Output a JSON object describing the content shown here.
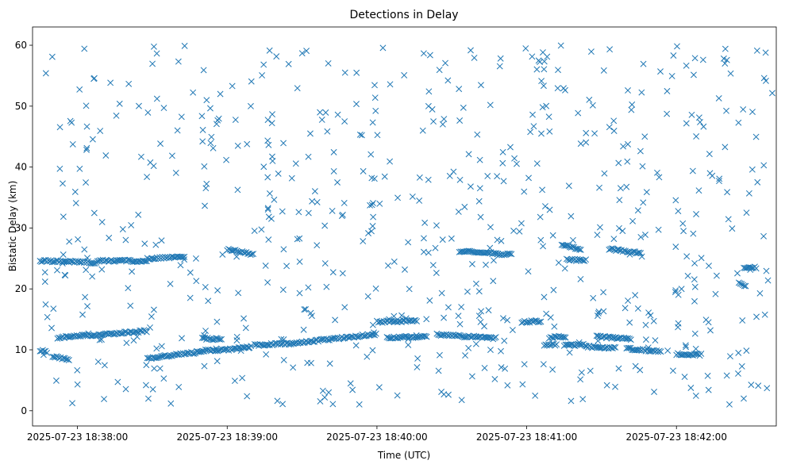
{
  "chart_data": {
    "type": "scatter",
    "title": "Detections in Delay",
    "xlabel": "Time (UTC)",
    "ylabel": "Bistatic Delay (km)",
    "marker": "x",
    "color": "#1f77b4",
    "grid": false,
    "xlim": [
      "2025-07-23 18:37:42",
      "2025-07-23 18:42:40"
    ],
    "ylim": [
      -2.5,
      63
    ],
    "x_ticks": [
      "2025-07-23 18:38:00",
      "2025-07-23 18:39:00",
      "2025-07-23 18:40:00",
      "2025-07-23 18:41:00",
      "2025-07-23 18:42:00"
    ],
    "y_ticks": [
      0,
      10,
      20,
      30,
      40,
      50,
      60
    ],
    "tracks": [
      {
        "t0": "2025-07-23 18:37:45",
        "t1": "2025-07-23 18:38:08",
        "y0": 24.6,
        "y1": 24.3
      },
      {
        "t0": "2025-07-23 18:38:08",
        "t1": "2025-07-23 18:38:28",
        "y0": 24.6,
        "y1": 24.6
      },
      {
        "t0": "2025-07-23 18:38:28",
        "t1": "2025-07-23 18:38:43",
        "y0": 25.0,
        "y1": 25.2
      },
      {
        "t0": "2025-07-23 18:37:45",
        "t1": "2025-07-23 18:37:48",
        "y0": 9.9,
        "y1": 9.6
      },
      {
        "t0": "2025-07-23 18:37:50",
        "t1": "2025-07-23 18:37:57",
        "y0": 9.0,
        "y1": 8.3
      },
      {
        "t0": "2025-07-23 18:37:52",
        "t1": "2025-07-23 18:38:28",
        "y0": 12.0,
        "y1": 13.1
      },
      {
        "t0": "2025-07-23 18:38:28",
        "t1": "2025-07-23 18:38:48",
        "y0": 8.6,
        "y1": 9.6
      },
      {
        "t0": "2025-07-23 18:38:48",
        "t1": "2025-07-23 18:39:04",
        "y0": 9.8,
        "y1": 10.1
      },
      {
        "t0": "2025-07-23 18:38:50",
        "t1": "2025-07-23 18:38:58",
        "y0": 11.8,
        "y1": 11.8
      },
      {
        "t0": "2025-07-23 18:39:04",
        "t1": "2025-07-23 18:39:10",
        "y0": 10.3,
        "y1": 10.5
      },
      {
        "t0": "2025-07-23 18:39:00",
        "t1": "2025-07-23 18:39:11",
        "y0": 26.5,
        "y1": 25.6
      },
      {
        "t0": "2025-07-23 18:39:11",
        "t1": "2025-07-23 18:39:25",
        "y0": 10.8,
        "y1": 11.0
      },
      {
        "t0": "2025-07-23 18:39:25",
        "t1": "2025-07-23 18:40:00",
        "y0": 11.0,
        "y1": 12.6
      },
      {
        "t0": "2025-07-23 18:40:00",
        "t1": "2025-07-23 18:40:16",
        "y0": 14.6,
        "y1": 14.8
      },
      {
        "t0": "2025-07-23 18:40:04",
        "t1": "2025-07-23 18:40:20",
        "y0": 12.0,
        "y1": 12.2
      },
      {
        "t0": "2025-07-23 18:40:24",
        "t1": "2025-07-23 18:40:48",
        "y0": 12.5,
        "y1": 11.9
      },
      {
        "t0": "2025-07-23 18:40:33",
        "t1": "2025-07-23 18:40:54",
        "y0": 26.2,
        "y1": 25.6
      },
      {
        "t0": "2025-07-23 18:40:58",
        "t1": "2025-07-23 18:41:06",
        "y0": 14.6,
        "y1": 14.7
      },
      {
        "t0": "2025-07-23 18:41:07",
        "t1": "2025-07-23 18:41:12",
        "y0": 10.8,
        "y1": 10.8
      },
      {
        "t0": "2025-07-23 18:41:09",
        "t1": "2025-07-23 18:41:16",
        "y0": 12.0,
        "y1": 12.2
      },
      {
        "t0": "2025-07-23 18:41:14",
        "t1": "2025-07-23 18:41:22",
        "y0": 27.2,
        "y1": 26.5
      },
      {
        "t0": "2025-07-23 18:41:15",
        "t1": "2025-07-23 18:41:24",
        "y0": 10.8,
        "y1": 10.8
      },
      {
        "t0": "2025-07-23 18:41:16",
        "t1": "2025-07-23 18:41:24",
        "y0": 24.8,
        "y1": 24.7
      },
      {
        "t0": "2025-07-23 18:41:24",
        "t1": "2025-07-23 18:41:36",
        "y0": 10.5,
        "y1": 10.3
      },
      {
        "t0": "2025-07-23 18:41:28",
        "t1": "2025-07-23 18:41:42",
        "y0": 12.2,
        "y1": 11.8
      },
      {
        "t0": "2025-07-23 18:41:33",
        "t1": "2025-07-23 18:41:46",
        "y0": 26.6,
        "y1": 25.8
      },
      {
        "t0": "2025-07-23 18:41:40",
        "t1": "2025-07-23 18:41:54",
        "y0": 10.2,
        "y1": 9.7
      },
      {
        "t0": "2025-07-23 18:42:00",
        "t1": "2025-07-23 18:42:10",
        "y0": 9.3,
        "y1": 9.2
      },
      {
        "t0": "2025-07-23 18:42:27",
        "t1": "2025-07-23 18:42:32",
        "y0": 23.5,
        "y1": 23.5
      },
      {
        "t0": "2025-07-23 18:42:25",
        "t1": "2025-07-23 18:42:28",
        "y0": 20.9,
        "y1": 20.4
      }
    ],
    "clutter": {
      "count": 650,
      "t0": "2025-07-23 18:37:46",
      "t1": "2025-07-23 18:42:39",
      "y_range": [
        1,
        60
      ]
    }
  }
}
